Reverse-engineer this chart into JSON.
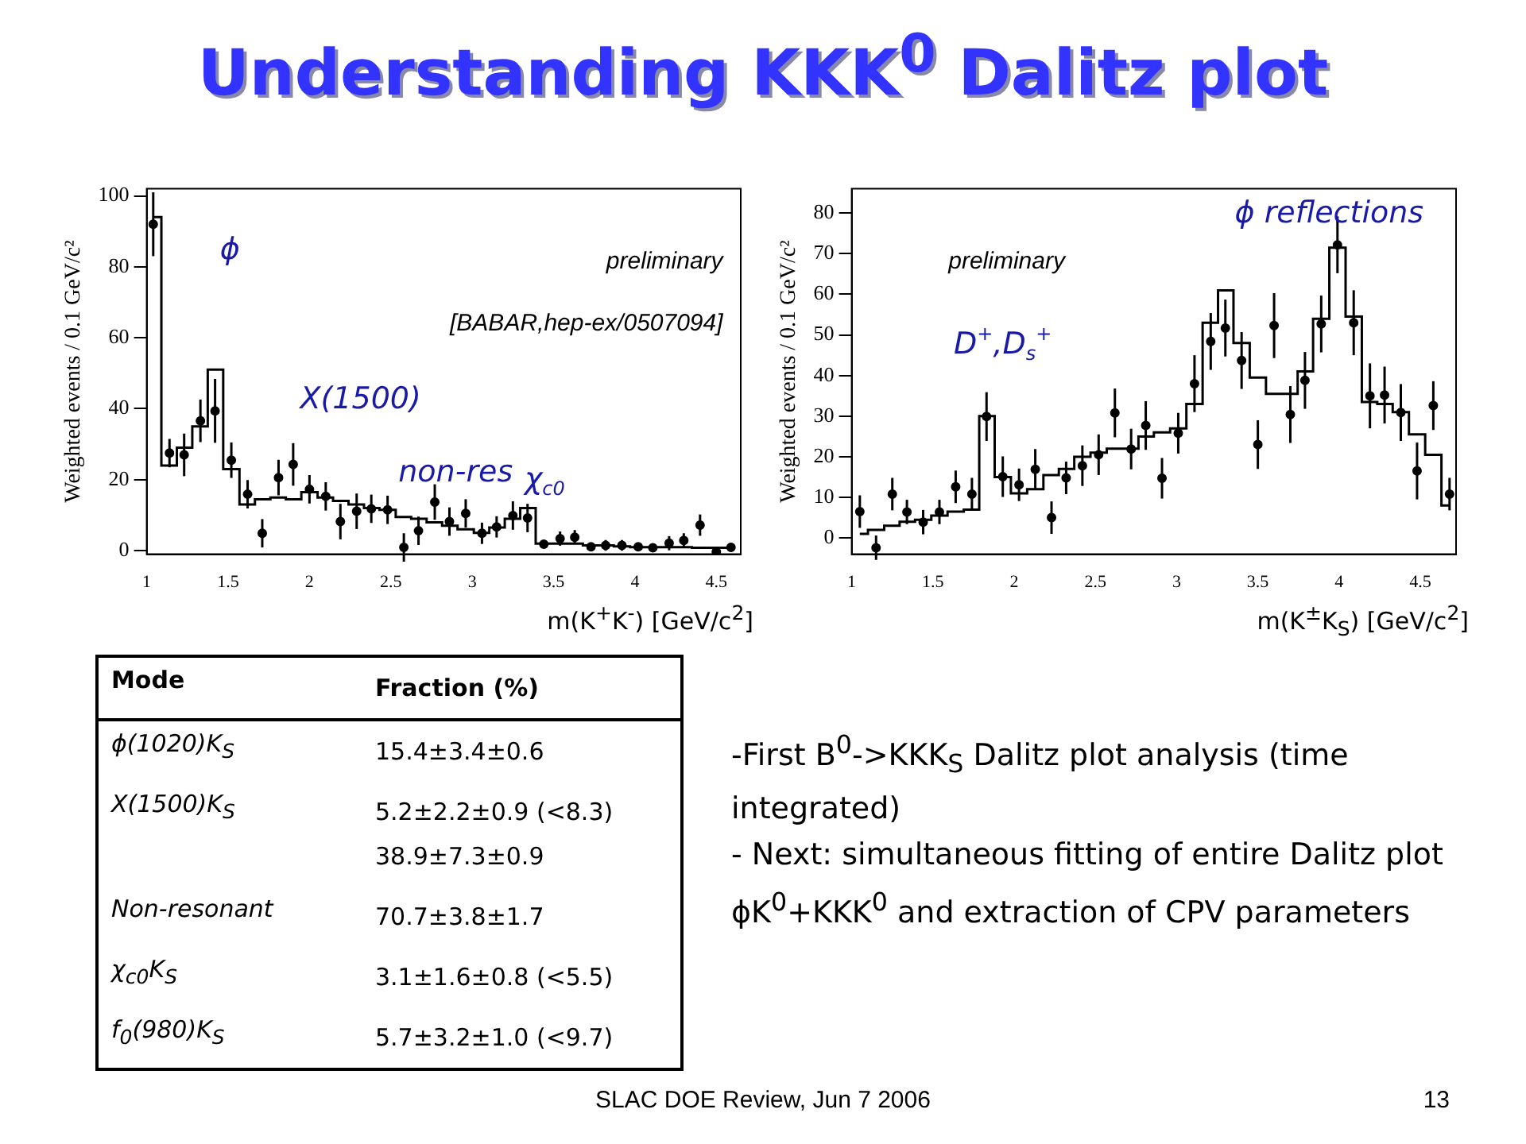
{
  "chart_data": [
    {
      "type": "other",
      "title": "Understanding KKK$^{0}$ Dalitz plot",
      "annotations": [
        "Mode",
        "Fraction (%)",
        "ϕ(1020)K$_{S}$",
        "15.4±3.4±0.6",
        "X(1500)K$_{S}$",
        "5.2±2.2±0.9 (<8.3)\n38.9±7.3±0.9",
        "Non-resonant",
        "70.7±3.8±1.7",
        "χ$_{c0}$K$_{S}$",
        "3.1±1.6±0.8 (<5.5)",
        "f$_{0}$(980)K$_{S}$",
        "5.7±3.2±1.0 (<9.7)",
        "-First B$^{0}$->KKK$_{S}$ Dalitz plot analysis (time integrated)",
        "- Next: simultaneous fitting of entire Dalitz plot ϕK$^{0}$+KKK$^{0}$ and extraction of CPV parameters",
        "SLAC DOE Review, Jun 7 2006",
        "13"
      ]
    },
    {
      "type": "scatter",
      "xlabel": "m(K$^{+}$K$^{-}$)  [GeV/c$^{2}$]",
      "ylabel": "Weighted events / 0.1 GeV/c²",
      "xlim": [
        1,
        4.65
      ],
      "xticks": [
        1,
        1.5,
        2,
        2.5,
        3,
        3.5,
        4,
        4.5
      ],
      "ylim": [
        -1,
        102
      ],
      "yticks": [
        0,
        20,
        40,
        60,
        80,
        100
      ],
      "grid": false,
      "legend": false,
      "annotations": [
        "preliminary",
        "[BABAR,hep-ex/0507094]",
        "ϕ",
        "X(1500)",
        "non-res",
        "χ$_{c0}$"
      ],
      "series": [
        {
          "type": "scatter",
          "marker": "circle",
          "color": "#000000",
          "x": [
            1.04,
            1.14,
            1.23,
            1.33,
            1.42,
            1.52,
            1.62,
            1.71,
            1.81,
            1.9,
            2.0,
            2.1,
            2.19,
            2.29,
            2.38,
            2.48,
            2.58,
            2.67,
            2.77,
            2.86,
            2.96,
            3.06,
            3.15,
            3.25,
            3.34,
            3.44,
            3.54,
            3.63,
            3.73,
            3.82,
            3.92,
            4.02,
            4.11,
            4.21,
            4.3,
            4.4,
            4.5,
            4.59
          ],
          "values": [
            92,
            27.5,
            27,
            36.6,
            39.4,
            25.5,
            15.9,
            4.9,
            20.6,
            24.3,
            17.3,
            15.3,
            8.2,
            11.1,
            11.8,
            11.5,
            0.9,
            5.6,
            13.7,
            8.2,
            10.5,
            4.9,
            6.7,
            9.9,
            9.2,
            1.8,
            3.4,
            3.8,
            1.1,
            1.5,
            1.5,
            1.1,
            0.8,
            2.1,
            2.9,
            7.2,
            -0.3,
            0.9
          ],
          "errors": [
            9,
            4,
            6,
            6,
            9,
            5,
            4,
            4,
            5,
            6,
            4,
            4,
            5,
            5,
            4,
            4,
            4,
            4,
            5,
            4,
            4,
            3,
            3,
            4,
            4,
            null,
            2,
            2,
            null,
            1.5,
            1.5,
            null,
            null,
            2,
            2,
            3,
            null,
            null
          ]
        },
        {
          "type": "step",
          "color": "#000000",
          "x": [
            1.04,
            1.14,
            1.23,
            1.33,
            1.42,
            1.52,
            1.62,
            1.71,
            1.81,
            1.9,
            2.0,
            2.1,
            2.19,
            2.29,
            2.38,
            2.48,
            2.58,
            2.67,
            2.77,
            2.86,
            2.96,
            3.06,
            3.15,
            3.25,
            3.34,
            3.44,
            3.54,
            3.63,
            3.73,
            3.82,
            3.92,
            4.02,
            4.11,
            4.21,
            4.3,
            4.4,
            4.5,
            4.59
          ],
          "values": [
            94,
            24,
            29,
            35,
            51,
            23,
            13,
            14.5,
            15,
            14.5,
            16.5,
            15,
            14,
            13,
            12,
            11.5,
            9.5,
            9,
            8,
            7,
            6,
            5,
            6.5,
            9,
            12,
            2,
            2,
            2,
            1.5,
            1.5,
            1.2,
            1,
            1,
            1,
            1,
            0.8,
            0.8,
            0.8
          ]
        }
      ]
    },
    {
      "type": "scatter",
      "xlabel": "m(K$^{±}$K$_{S}$) [GeV/c$^{2}$]",
      "ylabel": "Weighted events / 0.1 GeV/c²",
      "xlim": [
        1,
        4.72
      ],
      "xticks": [
        1,
        1.5,
        2,
        2.5,
        3,
        3.5,
        4,
        4.5
      ],
      "ylim": [
        -4,
        86
      ],
      "yticks": [
        0,
        10,
        20,
        30,
        40,
        50,
        60,
        70,
        80
      ],
      "grid": false,
      "legend": false,
      "annotations": [
        "preliminary",
        "D$^{+}$,D$_{s}$$^{+}$",
        "ϕ reflections"
      ],
      "series": [
        {
          "type": "scatter",
          "marker": "circle",
          "color": "#000000",
          "x": [
            1.05,
            1.15,
            1.25,
            1.34,
            1.44,
            1.54,
            1.64,
            1.74,
            1.83,
            1.93,
            2.03,
            2.13,
            2.23,
            2.32,
            2.42,
            2.52,
            2.62,
            2.72,
            2.81,
            2.91,
            3.01,
            3.11,
            3.21,
            3.3,
            3.4,
            3.5,
            3.6,
            3.7,
            3.79,
            3.89,
            3.99,
            4.09,
            4.19,
            4.28,
            4.38,
            4.48,
            4.58,
            4.68
          ],
          "values": [
            6.5,
            -2.4,
            10.8,
            6.4,
            3.9,
            6.4,
            12.6,
            10.8,
            29.9,
            15.1,
            13.1,
            16.9,
            5.0,
            14.8,
            17.8,
            20.5,
            30.8,
            21.9,
            27.7,
            14.7,
            25.8,
            38.0,
            48.4,
            51.7,
            43.7,
            23,
            52.3,
            30.4,
            38.8,
            52.7,
            72.2,
            53,
            35,
            35.2,
            30.9,
            16.5,
            32.6,
            10.8
          ],
          "errors": [
            4,
            3,
            4,
            3,
            3,
            3,
            4,
            4,
            6,
            5,
            4,
            5,
            4,
            4,
            5,
            5,
            6,
            5,
            6,
            5,
            5,
            7,
            7,
            7,
            7,
            6,
            8,
            7,
            7,
            7,
            7,
            8,
            8,
            7,
            7,
            7,
            6,
            4
          ]
        },
        {
          "type": "step",
          "color": "#000000",
          "x": [
            1.05,
            1.15,
            1.25,
            1.34,
            1.44,
            1.54,
            1.64,
            1.74,
            1.83,
            1.93,
            2.03,
            2.13,
            2.23,
            2.32,
            2.42,
            2.52,
            2.62,
            2.72,
            2.81,
            2.91,
            3.01,
            3.11,
            3.21,
            3.3,
            3.4,
            3.5,
            3.6,
            3.7,
            3.79,
            3.89,
            3.99,
            4.09,
            4.19,
            4.28,
            4.38,
            4.48,
            4.58,
            4.68
          ],
          "values": [
            1,
            2,
            3,
            4,
            4.5,
            5.5,
            6.5,
            7,
            30,
            15,
            11,
            12,
            15.5,
            17,
            20,
            21,
            22,
            22,
            25,
            26,
            27,
            33,
            53,
            61,
            48,
            39.5,
            35.5,
            35.5,
            41,
            54,
            71.5,
            54.5,
            33.5,
            33,
            31,
            25.5,
            20.5,
            8
          ]
        }
      ]
    }
  ]
}
